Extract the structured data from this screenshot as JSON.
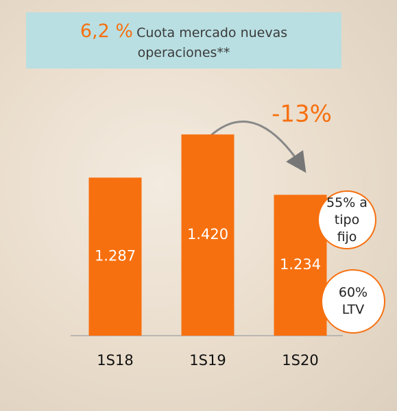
{
  "chart_data": {
    "type": "bar",
    "highlight": "6,2 %",
    "subtitle": "Cuota mercado nuevas operaciones**",
    "categories": [
      "1S18",
      "1S19",
      "1S20"
    ],
    "values": [
      1287,
      1420,
      1234
    ],
    "value_labels": [
      "1.287",
      "1.420",
      "1.234"
    ],
    "color": "#f7700f",
    "ylim": [
      800,
      1600
    ],
    "change_label": "-13%",
    "badges": [
      "55% a tipo fijo",
      "60% LTV"
    ]
  }
}
